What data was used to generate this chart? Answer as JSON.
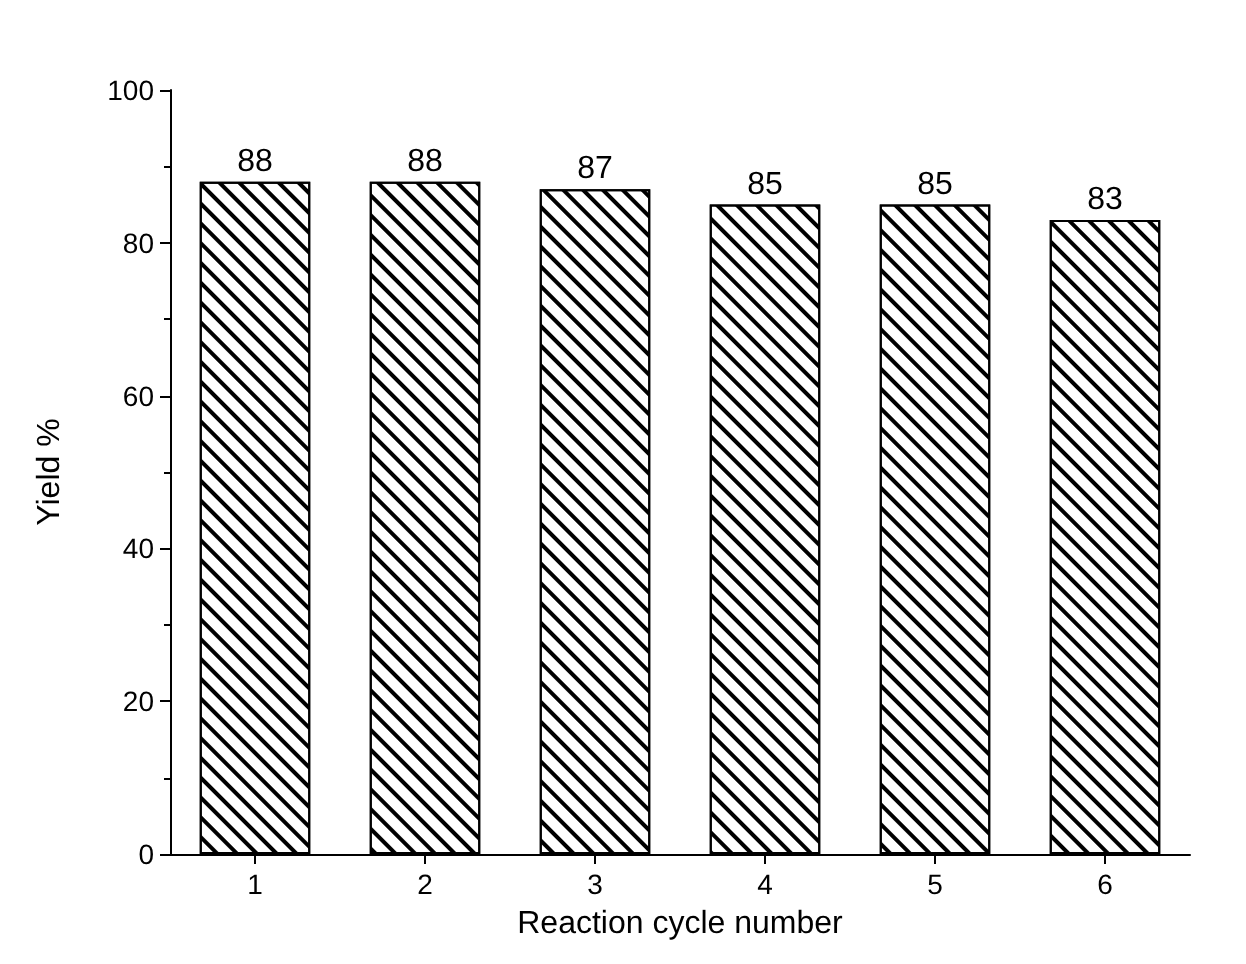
{
  "chart_data": {
    "type": "bar",
    "xlabel": "Reaction cycle number",
    "ylabel": "Yield %",
    "categories": [
      "1",
      "2",
      "3",
      "4",
      "5",
      "6"
    ],
    "values": [
      88,
      88,
      87,
      85,
      85,
      83
    ],
    "color": "#000000",
    "ylim": [
      0,
      100
    ],
    "yticks": [
      0,
      20,
      40,
      60,
      80,
      100
    ],
    "grid": false,
    "data_labels": true
  }
}
